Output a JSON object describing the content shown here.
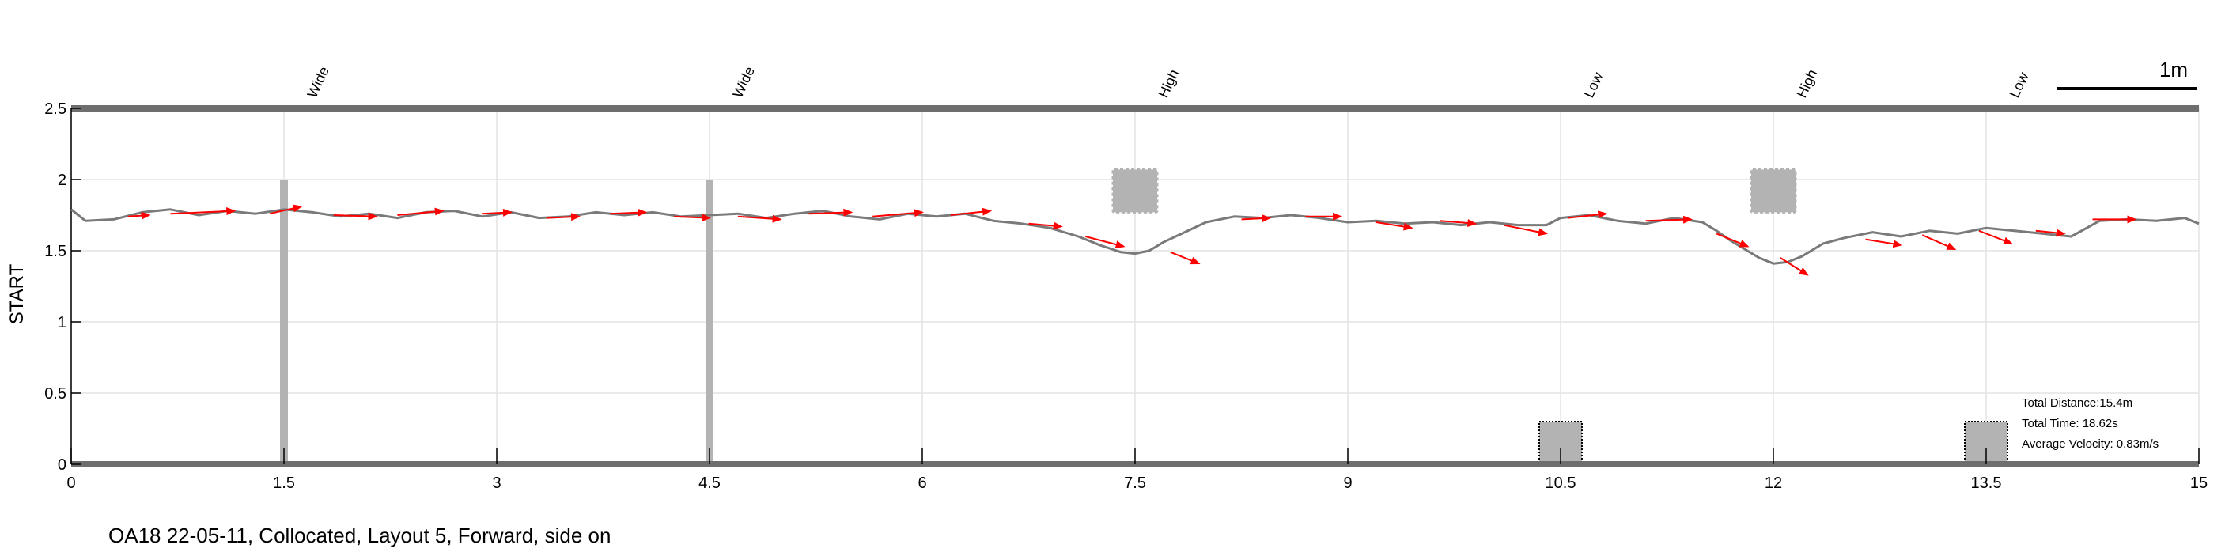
{
  "chart_data": {
    "type": "line",
    "title": "",
    "xlabel": "",
    "ylabel": "START",
    "xlim": [
      0,
      15
    ],
    "ylim": [
      0,
      2.5
    ],
    "x_ticks": [
      0,
      1.5,
      3,
      4.5,
      6,
      7.5,
      9,
      10.5,
      12,
      13.5,
      15
    ],
    "x_tick_labels": [
      "0",
      "1.5",
      "3",
      "4.5",
      "6",
      "7.5",
      "9",
      "10.5",
      "12",
      "13.5",
      "15"
    ],
    "y_ticks": [
      0,
      0.5,
      1,
      1.5,
      2,
      2.5
    ],
    "y_tick_labels": [
      "0",
      "0.5",
      "1",
      "1.5",
      "2",
      "2.5"
    ],
    "grid": true,
    "scale_bar_label": "1m",
    "obstacle_labels": [
      {
        "x": 1.5,
        "label": "Wide"
      },
      {
        "x": 4.5,
        "label": "Wide"
      },
      {
        "x": 7.5,
        "label": "High"
      },
      {
        "x": 10.5,
        "label": "Low"
      },
      {
        "x": 12,
        "label": "High"
      },
      {
        "x": 13.5,
        "label": "Low"
      }
    ],
    "wide_obstacles": [
      {
        "x": 1.5,
        "y_range": [
          0,
          2
        ]
      },
      {
        "x": 4.5,
        "y_range": [
          0,
          2
        ]
      }
    ],
    "high_obstacles": [
      {
        "x": 7.5,
        "y_range": [
          1.77,
          2.07
        ]
      },
      {
        "x": 12,
        "y_range": [
          1.77,
          2.07
        ]
      }
    ],
    "low_obstacles": [
      {
        "x": 10.5,
        "y_range": [
          0,
          0.3
        ]
      },
      {
        "x": 13.5,
        "y_range": [
          0,
          0.3
        ]
      }
    ],
    "series": [
      {
        "x": [
          0,
          0.1,
          0.3,
          0.5,
          0.7,
          0.9,
          1.1,
          1.3,
          1.5,
          1.7,
          1.9,
          2.1,
          2.3,
          2.5,
          2.7,
          2.9,
          3.1,
          3.3,
          3.5,
          3.7,
          3.9,
          4.1,
          4.3,
          4.5,
          4.7,
          4.9,
          5.1,
          5.3,
          5.5,
          5.7,
          5.9,
          6.1,
          6.3,
          6.5,
          6.7,
          6.9,
          7.1,
          7.25,
          7.4,
          7.5,
          7.6,
          7.7,
          7.85,
          8.0,
          8.2,
          8.4,
          8.6,
          8.8,
          9.0,
          9.2,
          9.4,
          9.6,
          9.8,
          10.0,
          10.2,
          10.4,
          10.5,
          10.7,
          10.9,
          11.1,
          11.3,
          11.5,
          11.6,
          11.7,
          11.8,
          11.9,
          12.0,
          12.1,
          12.2,
          12.35,
          12.5,
          12.7,
          12.9,
          13.1,
          13.3,
          13.5,
          13.7,
          13.9,
          14.1,
          14.3,
          14.5,
          14.7,
          14.9,
          15.0
        ],
        "y": [
          1.79,
          1.71,
          1.72,
          1.77,
          1.79,
          1.75,
          1.78,
          1.76,
          1.79,
          1.77,
          1.74,
          1.76,
          1.73,
          1.77,
          1.78,
          1.74,
          1.77,
          1.73,
          1.74,
          1.77,
          1.75,
          1.77,
          1.74,
          1.75,
          1.76,
          1.73,
          1.76,
          1.78,
          1.74,
          1.72,
          1.76,
          1.74,
          1.76,
          1.71,
          1.69,
          1.66,
          1.6,
          1.54,
          1.49,
          1.48,
          1.5,
          1.56,
          1.63,
          1.7,
          1.74,
          1.73,
          1.75,
          1.73,
          1.7,
          1.71,
          1.69,
          1.7,
          1.68,
          1.7,
          1.68,
          1.68,
          1.73,
          1.75,
          1.71,
          1.69,
          1.73,
          1.7,
          1.64,
          1.57,
          1.51,
          1.45,
          1.41,
          1.42,
          1.46,
          1.55,
          1.59,
          1.63,
          1.6,
          1.64,
          1.62,
          1.66,
          1.64,
          1.62,
          1.6,
          1.71,
          1.72,
          1.71,
          1.73,
          1.69
        ]
      }
    ],
    "velocity_arrows": [
      [
        0.4,
        1.74,
        0.55,
        1.75
      ],
      [
        0.7,
        1.76,
        1.15,
        1.78
      ],
      [
        1.4,
        1.76,
        1.62,
        1.81
      ],
      [
        1.85,
        1.75,
        2.15,
        1.74
      ],
      [
        2.3,
        1.75,
        2.62,
        1.78
      ],
      [
        2.9,
        1.76,
        3.1,
        1.77
      ],
      [
        3.35,
        1.73,
        3.58,
        1.74
      ],
      [
        3.8,
        1.76,
        4.05,
        1.77
      ],
      [
        4.25,
        1.74,
        4.5,
        1.73
      ],
      [
        4.7,
        1.74,
        5.0,
        1.72
      ],
      [
        5.2,
        1.76,
        5.5,
        1.77
      ],
      [
        5.65,
        1.74,
        6.0,
        1.77
      ],
      [
        6.2,
        1.75,
        6.48,
        1.78
      ],
      [
        6.75,
        1.69,
        6.98,
        1.67
      ],
      [
        7.15,
        1.6,
        7.42,
        1.53
      ],
      [
        7.75,
        1.49,
        7.95,
        1.41
      ],
      [
        8.25,
        1.72,
        8.45,
        1.73
      ],
      [
        8.7,
        1.74,
        8.95,
        1.74
      ],
      [
        9.2,
        1.7,
        9.45,
        1.66
      ],
      [
        9.65,
        1.71,
        9.9,
        1.69
      ],
      [
        10.1,
        1.68,
        10.4,
        1.62
      ],
      [
        10.55,
        1.73,
        10.82,
        1.76
      ],
      [
        11.1,
        1.71,
        11.42,
        1.72
      ],
      [
        11.6,
        1.62,
        11.82,
        1.53
      ],
      [
        12.05,
        1.45,
        12.24,
        1.33
      ],
      [
        12.65,
        1.58,
        12.9,
        1.54
      ],
      [
        13.05,
        1.61,
        13.28,
        1.51
      ],
      [
        13.45,
        1.64,
        13.68,
        1.55
      ],
      [
        13.85,
        1.64,
        14.05,
        1.62
      ],
      [
        14.25,
        1.72,
        14.55,
        1.72
      ]
    ],
    "stats": [
      "Total Distance:15.4m",
      "Total Time: 18.62s",
      "Average Velocity: 0.83m/s"
    ]
  },
  "caption": "OA18 22-05-11, Collocated, Layout 5, Forward, side on",
  "colors": {
    "path": "#7a7a7a",
    "arrow": "#ff0000",
    "obstacle": "#b3b3b3",
    "axis_band": "#6e6e6e",
    "grid": "#e3e3e3"
  }
}
